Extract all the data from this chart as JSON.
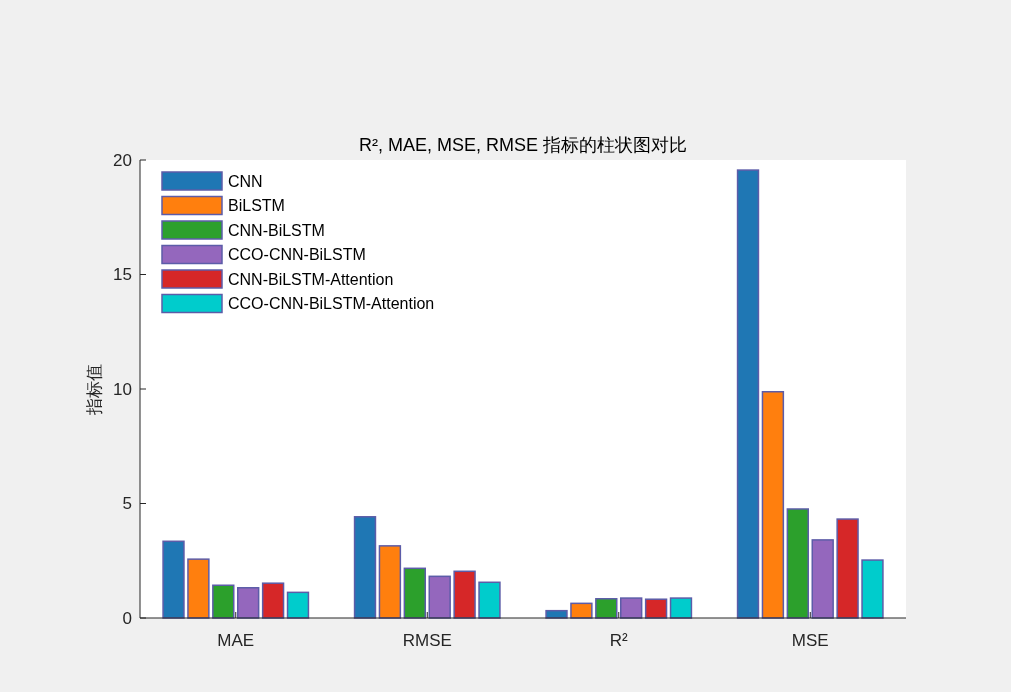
{
  "chart_data": {
    "type": "bar",
    "title": "R², MAE, MSE, RMSE 指标的柱状图对比",
    "ylabel": "指标值",
    "categories": [
      "MAE",
      "RMSE",
      "R²",
      "MSE"
    ],
    "series": [
      {
        "name": "CNN",
        "color": "#1f77b4",
        "values": [
          3.35,
          4.42,
          0.32,
          19.56
        ]
      },
      {
        "name": "BiLSTM",
        "color": "#ff7f0e",
        "values": [
          2.57,
          3.15,
          0.64,
          9.88
        ]
      },
      {
        "name": "CNN-BiLSTM",
        "color": "#2ca02c",
        "values": [
          1.43,
          2.17,
          0.84,
          4.76
        ]
      },
      {
        "name": "CCO-CNN-BiLSTM",
        "color": "#9467bd",
        "values": [
          1.32,
          1.82,
          0.87,
          3.41
        ]
      },
      {
        "name": "CNN-BiLSTM-Attention",
        "color": "#d62728",
        "values": [
          1.52,
          2.04,
          0.82,
          4.32
        ]
      },
      {
        "name": "CCO-CNN-BiLSTM-Attention",
        "color": "#00cccc",
        "values": [
          1.12,
          1.56,
          0.87,
          2.53
        ]
      }
    ],
    "ylim": [
      0,
      20
    ],
    "yticks": [
      0,
      5,
      10,
      15,
      20
    ],
    "legend": "top left"
  }
}
